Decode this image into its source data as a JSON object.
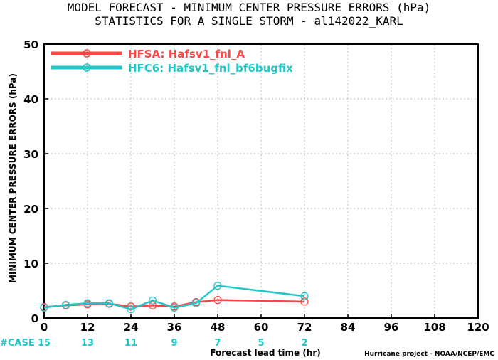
{
  "chart_data": {
    "type": "line",
    "title": "MODEL FORECAST - MINIMUM CENTER PRESSURE ERRORS (hPa)",
    "subtitle": "STATISTICS FOR A SINGLE STORM - al142022_KARL",
    "xlabel": "Forecast lead time (hr)",
    "ylabel": "MINIMUM CENTER PRESSURE ERRORS (hPa)",
    "xlim": [
      0,
      120
    ],
    "ylim": [
      0,
      50
    ],
    "x_ticks": [
      0,
      12,
      24,
      36,
      48,
      60,
      72,
      84,
      96,
      108,
      120
    ],
    "y_ticks": [
      0,
      10,
      20,
      30,
      40,
      50
    ],
    "grid": true,
    "legend_position": "top-left",
    "series": [
      {
        "name": "HFSA: Hafsv1_fnl_A",
        "color": "#ff4444",
        "x": [
          0,
          6,
          12,
          18,
          24,
          30,
          36,
          42,
          48,
          72
        ],
        "y": [
          2.0,
          2.3,
          2.5,
          2.6,
          2.1,
          2.3,
          2.1,
          2.9,
          3.3,
          3.0
        ]
      },
      {
        "name": "HFC6: Hafsv1_fnl_bf6bugfix",
        "color": "#22c7c7",
        "x": [
          0,
          6,
          12,
          18,
          24,
          30,
          36,
          42,
          48,
          72
        ],
        "y": [
          1.9,
          2.4,
          2.7,
          2.7,
          1.6,
          3.2,
          1.9,
          2.7,
          5.9,
          4.0
        ]
      }
    ],
    "case_label": "#CASE",
    "case_color": "#22c7c7",
    "case_counts": [
      {
        "x": 0,
        "count": "15"
      },
      {
        "x": 12,
        "count": "13"
      },
      {
        "x": 24,
        "count": "11"
      },
      {
        "x": 36,
        "count": "9"
      },
      {
        "x": 48,
        "count": "7"
      },
      {
        "x": 60,
        "count": "5"
      },
      {
        "x": 72,
        "count": "2"
      }
    ],
    "credit": "Hurricane project - NOAA/NCEP/EMC"
  }
}
